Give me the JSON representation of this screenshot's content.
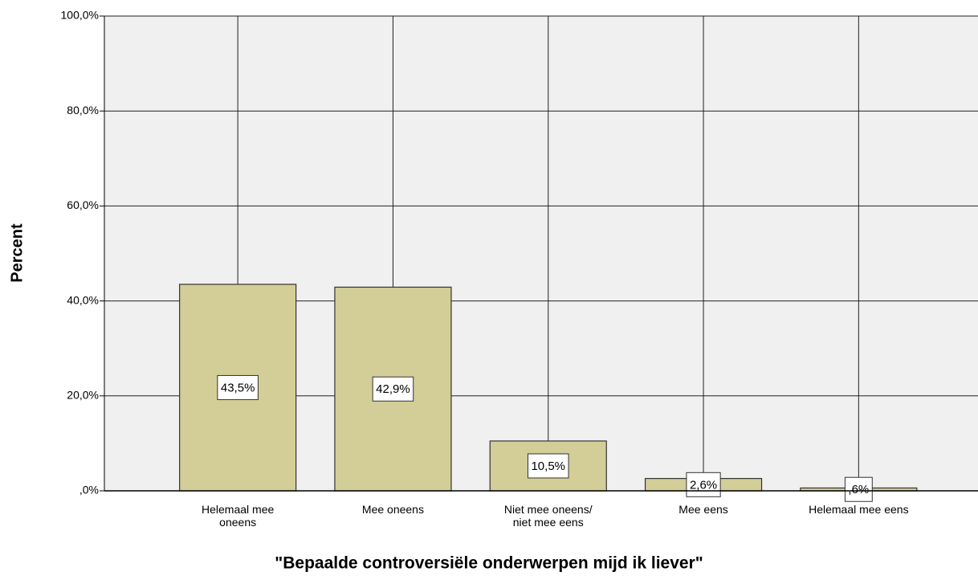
{
  "chart_data": {
    "type": "bar",
    "x_label": "\"Bepaalde controversiële onderwerpen mijd ik liever\"",
    "y_label": "Percent",
    "categories": [
      "Helemaal mee\noneens",
      "Mee oneens",
      "Niet mee oneens/\nniet mee eens",
      "Mee eens",
      "Helemaal mee eens"
    ],
    "values": [
      43.5,
      42.9,
      10.5,
      2.6,
      0.6
    ],
    "value_labels": [
      "43,5%",
      "42,9%",
      "10,5%",
      "2,6%",
      ",6%"
    ],
    "color": "#d3ce98",
    "ylim": [
      0,
      100
    ],
    "yticks": [
      {
        "value": 0,
        "label": ",0%"
      },
      {
        "value": 20,
        "label": "20,0%"
      },
      {
        "value": 40,
        "label": "40,0%"
      },
      {
        "value": 60,
        "label": "60,0%"
      },
      {
        "value": 80,
        "label": "80,0%"
      },
      {
        "value": 100,
        "label": "100,0%"
      }
    ],
    "grid": true
  }
}
